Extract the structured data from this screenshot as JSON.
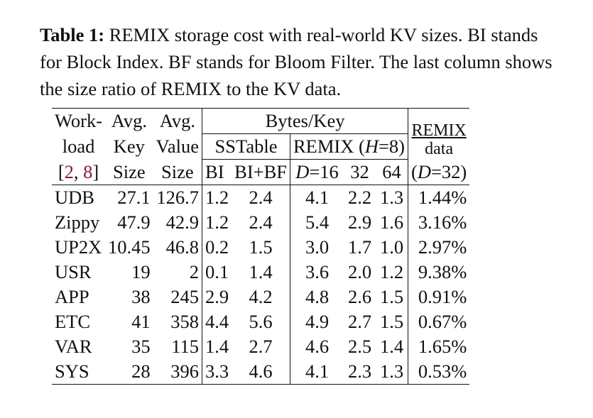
{
  "caption": {
    "label": "Table 1:",
    "text": " REMIX storage cost with real-world KV sizes. BI stands for Block Index. BF stands for Bloom Filter. The last column shows the size ratio of REMIX to the KV data."
  },
  "header": {
    "workload_1": "Work-",
    "workload_2": "load",
    "refs_open": "[",
    "ref_a": "2",
    "refs_sep": ", ",
    "ref_b": "8",
    "refs_close": "]",
    "avg_key_1": "Avg.",
    "avg_key_2": "Key",
    "avg_key_3": "Size",
    "avg_value_1": "Avg.",
    "avg_value_2": "Value",
    "avg_value_3": "Size",
    "bytes_per_key": "Bytes/Key",
    "sstable": "SSTable",
    "remix_h_pre": "REMIX (",
    "remix_h_var": "H",
    "remix_h_post": "=8)",
    "bi": "BI",
    "bi_bf": "BI+BF",
    "d16_var": "D",
    "d16_post": "=16",
    "d32": "32",
    "d64": "64",
    "remix_data_1": "REMIX",
    "remix_data_2": "data",
    "remix_data_3_pre": "(",
    "remix_data_3_var": "D",
    "remix_data_3_post": "=32)"
  },
  "rows": [
    {
      "workload": "UDB",
      "key": "27.1",
      "value": "126.7",
      "bi": "1.2",
      "bibf": "2.4",
      "d16": "4.1",
      "d32": "2.2",
      "d64": "1.3",
      "ratio": "1.44%"
    },
    {
      "workload": "Zippy",
      "key": "47.9",
      "value": "42.9",
      "bi": "1.2",
      "bibf": "2.4",
      "d16": "5.4",
      "d32": "2.9",
      "d64": "1.6",
      "ratio": "3.16%"
    },
    {
      "workload": "UP2X",
      "key": "10.45",
      "value": "46.8",
      "bi": "0.2",
      "bibf": "1.5",
      "d16": "3.0",
      "d32": "1.7",
      "d64": "1.0",
      "ratio": "2.97%"
    },
    {
      "workload": "USR",
      "key": "19",
      "value": "2",
      "bi": "0.1",
      "bibf": "1.4",
      "d16": "3.6",
      "d32": "2.0",
      "d64": "1.2",
      "ratio": "9.38%"
    },
    {
      "workload": "APP",
      "key": "38",
      "value": "245",
      "bi": "2.9",
      "bibf": "4.2",
      "d16": "4.8",
      "d32": "2.6",
      "d64": "1.5",
      "ratio": "0.91%"
    },
    {
      "workload": "ETC",
      "key": "41",
      "value": "358",
      "bi": "4.4",
      "bibf": "5.6",
      "d16": "4.9",
      "d32": "2.7",
      "d64": "1.5",
      "ratio": "0.67%"
    },
    {
      "workload": "VAR",
      "key": "35",
      "value": "115",
      "bi": "1.4",
      "bibf": "2.7",
      "d16": "4.6",
      "d32": "2.5",
      "d64": "1.4",
      "ratio": "1.65%"
    },
    {
      "workload": "SYS",
      "key": "28",
      "value": "396",
      "bi": "3.3",
      "bibf": "4.6",
      "d16": "4.1",
      "d32": "2.3",
      "d64": "1.3",
      "ratio": "0.53%"
    }
  ]
}
